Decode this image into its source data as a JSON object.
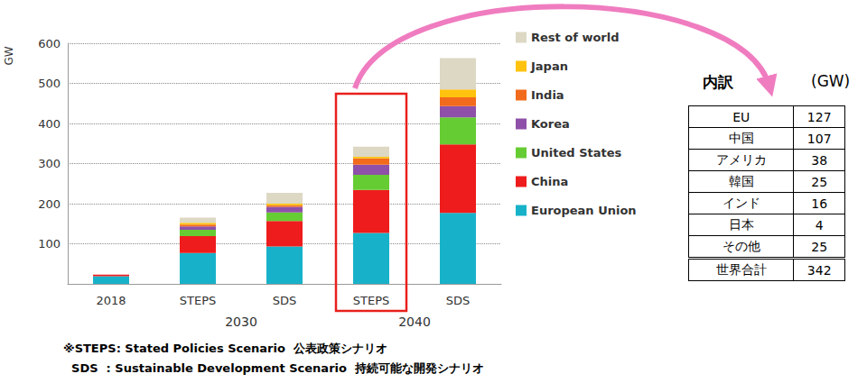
{
  "chart_data": {
    "type": "bar",
    "stacked": true,
    "y_label": "GW",
    "categories": [
      "2018",
      "STEPS",
      "SDS",
      "STEPS",
      "SDS"
    ],
    "x_groups": [
      null,
      "2030",
      "2030",
      "2040",
      "2040"
    ],
    "ylim": [
      0,
      600
    ],
    "yticks": [
      100,
      200,
      300,
      400,
      500,
      600
    ],
    "grid": true,
    "legend": "right",
    "series": [
      {
        "name": "European Union",
        "color": "#17b2c9",
        "values": [
          19,
          77,
          93,
          127,
          177
        ]
      },
      {
        "name": "China",
        "color": "#ee1c1c",
        "values": [
          4,
          42,
          64,
          107,
          171
        ]
      },
      {
        "name": "United States",
        "color": "#66cc33",
        "values": [
          0,
          16,
          21,
          38,
          67
        ]
      },
      {
        "name": "Korea",
        "color": "#8e50a8",
        "values": [
          0,
          8,
          14,
          25,
          28
        ]
      },
      {
        "name": "India",
        "color": "#f26a1b",
        "values": [
          0,
          5,
          4,
          16,
          22
        ]
      },
      {
        "name": "Japan",
        "color": "#ffc20e",
        "values": [
          0,
          4,
          4,
          4,
          20
        ]
      },
      {
        "name": "Rest of world",
        "color": "#ddd8c4",
        "values": [
          0,
          13,
          27,
          25,
          78
        ]
      }
    ]
  },
  "table": {
    "title": "内訳",
    "unit": "(GW)",
    "rows": [
      [
        "EU",
        127
      ],
      [
        "中国",
        107
      ],
      [
        "アメリカ",
        38
      ],
      [
        "韓国",
        25
      ],
      [
        "インド",
        16
      ],
      [
        "日本",
        4
      ],
      [
        "その他",
        25
      ]
    ],
    "total": [
      "世界合計",
      342
    ]
  },
  "notes": [
    {
      "text": "※STEPS: Stated Policies Scenario",
      "ja": "公表政策シナリオ"
    },
    {
      "text": "  SDS  : Sustainable Development Scenario",
      "ja": "持続可能な開発シナリオ"
    }
  ]
}
